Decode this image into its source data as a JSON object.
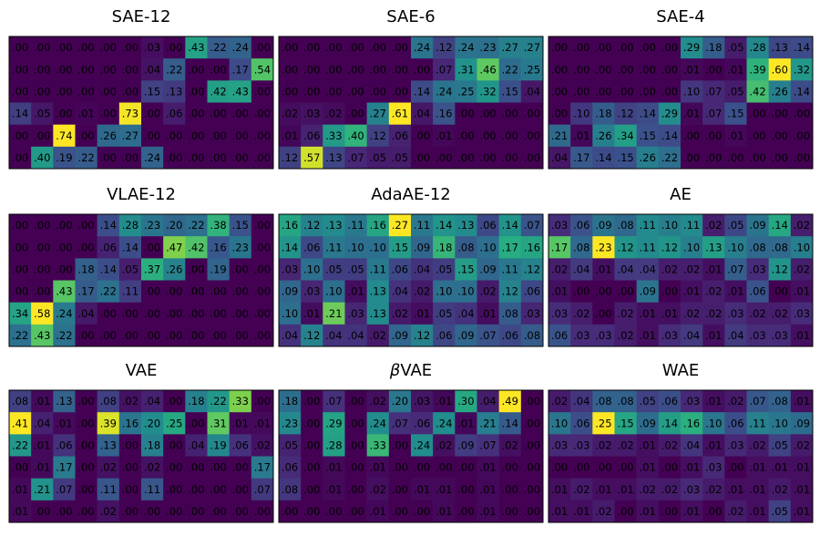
{
  "chart_data": [
    {
      "type": "heatmap",
      "title": "SAE-12",
      "rows": [
        [
          ".00",
          ".00",
          ".00",
          ".00",
          ".00",
          ".00",
          ".03",
          ".00",
          ".43",
          ".22",
          ".24",
          ".00"
        ],
        [
          ".00",
          ".00",
          ".00",
          ".00",
          ".00",
          ".00",
          ".04",
          ".22",
          ".00",
          ".00",
          ".17",
          ".54"
        ],
        [
          ".00",
          ".00",
          ".00",
          ".00",
          ".00",
          ".00",
          ".15",
          ".13",
          ".00",
          ".42",
          ".43",
          ".00"
        ],
        [
          ".14",
          ".05",
          ".00",
          ".01",
          ".00",
          ".73",
          ".00",
          ".06",
          ".00",
          ".00",
          ".00",
          ".00"
        ],
        [
          ".00",
          ".00",
          ".74",
          ".00",
          ".26",
          ".27",
          ".00",
          ".00",
          ".00",
          ".00",
          ".00",
          ".00"
        ],
        [
          ".00",
          ".40",
          ".19",
          ".22",
          ".00",
          ".00",
          ".24",
          ".00",
          ".00",
          ".00",
          ".00",
          ".00"
        ]
      ]
    },
    {
      "type": "heatmap",
      "title": "SAE-6",
      "rows": [
        [
          ".00",
          ".00",
          ".00",
          ".00",
          ".00",
          ".00",
          ".24",
          ".12",
          ".24",
          ".23",
          ".27",
          ".27"
        ],
        [
          ".00",
          ".00",
          ".00",
          ".00",
          ".00",
          ".00",
          ".00",
          ".07",
          ".31",
          ".46",
          ".22",
          ".25"
        ],
        [
          ".00",
          ".00",
          ".00",
          ".00",
          ".00",
          ".00",
          ".14",
          ".24",
          ".25",
          ".32",
          ".15",
          ".04"
        ],
        [
          ".02",
          ".03",
          ".02",
          ".00",
          ".27",
          ".61",
          ".04",
          ".16",
          ".00",
          ".00",
          ".00",
          ".00"
        ],
        [
          ".01",
          ".06",
          ".33",
          ".40",
          ".12",
          ".06",
          ".00",
          ".01",
          ".00",
          ".00",
          ".00",
          ".00"
        ],
        [
          ".12",
          ".57",
          ".13",
          ".07",
          ".05",
          ".05",
          ".00",
          ".00",
          ".00",
          ".00",
          ".00",
          ".00"
        ]
      ]
    },
    {
      "type": "heatmap",
      "title": "SAE-4",
      "rows": [
        [
          ".00",
          ".00",
          ".00",
          ".00",
          ".00",
          ".00",
          ".29",
          ".18",
          ".05",
          ".28",
          ".13",
          ".14"
        ],
        [
          ".00",
          ".00",
          ".00",
          ".00",
          ".00",
          ".00",
          ".01",
          ".00",
          ".01",
          ".39",
          ".60",
          ".32"
        ],
        [
          ".00",
          ".00",
          ".00",
          ".00",
          ".00",
          ".00",
          ".10",
          ".07",
          ".05",
          ".42",
          ".26",
          ".14"
        ],
        [
          ".00",
          ".10",
          ".18",
          ".12",
          ".14",
          ".29",
          ".01",
          ".07",
          ".15",
          ".00",
          ".00",
          ".00"
        ],
        [
          ".21",
          ".01",
          ".26",
          ".34",
          ".15",
          ".14",
          ".00",
          ".00",
          ".01",
          ".00",
          ".00",
          ".00"
        ],
        [
          ".04",
          ".17",
          ".14",
          ".15",
          ".26",
          ".22",
          ".00",
          ".00",
          ".00",
          ".00",
          ".00",
          ".00"
        ]
      ]
    },
    {
      "type": "heatmap",
      "title": "VLAE-12",
      "rows": [
        [
          ".00",
          ".00",
          ".00",
          ".00",
          ".14",
          ".28",
          ".23",
          ".20",
          ".22",
          ".38",
          ".15",
          ".00"
        ],
        [
          ".00",
          ".00",
          ".00",
          ".00",
          ".06",
          ".14",
          ".00",
          ".47",
          ".42",
          ".16",
          ".23",
          ".00"
        ],
        [
          ".00",
          ".00",
          ".00",
          ".18",
          ".14",
          ".05",
          ".37",
          ".26",
          ".00",
          ".19",
          ".00",
          ".00"
        ],
        [
          ".00",
          ".00",
          ".43",
          ".17",
          ".22",
          ".11",
          ".00",
          ".00",
          ".00",
          ".00",
          ".00",
          ".00"
        ],
        [
          ".34",
          ".58",
          ".24",
          ".04",
          ".00",
          ".00",
          ".00",
          ".00",
          ".00",
          ".00",
          ".00",
          ".00"
        ],
        [
          ".22",
          ".43",
          ".22",
          ".00",
          ".00",
          ".00",
          ".00",
          ".00",
          ".00",
          ".00",
          ".00",
          ".00"
        ]
      ]
    },
    {
      "type": "heatmap",
      "title": "AdaAE-12",
      "rows": [
        [
          ".16",
          ".12",
          ".13",
          ".11",
          ".16",
          ".27",
          ".11",
          ".14",
          ".13",
          ".06",
          ".14",
          ".07"
        ],
        [
          ".14",
          ".06",
          ".11",
          ".10",
          ".10",
          ".15",
          ".09",
          ".18",
          ".08",
          ".10",
          ".17",
          ".16"
        ],
        [
          ".03",
          ".10",
          ".05",
          ".05",
          ".11",
          ".06",
          ".04",
          ".05",
          ".15",
          ".09",
          ".11",
          ".12"
        ],
        [
          ".09",
          ".03",
          ".10",
          ".01",
          ".13",
          ".04",
          ".02",
          ".10",
          ".10",
          ".02",
          ".12",
          ".06"
        ],
        [
          ".10",
          ".01",
          ".21",
          ".03",
          ".13",
          ".02",
          ".01",
          ".05",
          ".04",
          ".01",
          ".08",
          ".03"
        ],
        [
          ".04",
          ".12",
          ".04",
          ".04",
          ".02",
          ".09",
          ".12",
          ".06",
          ".09",
          ".07",
          ".06",
          ".08"
        ]
      ]
    },
    {
      "type": "heatmap",
      "title": "AE",
      "rows": [
        [
          ".03",
          ".06",
          ".09",
          ".08",
          ".11",
          ".10",
          ".11",
          ".02",
          ".05",
          ".09",
          ".14",
          ".02"
        ],
        [
          ".17",
          ".08",
          ".23",
          ".12",
          ".11",
          ".12",
          ".10",
          ".13",
          ".10",
          ".08",
          ".08",
          ".10"
        ],
        [
          ".02",
          ".04",
          ".01",
          ".04",
          ".04",
          ".02",
          ".02",
          ".01",
          ".07",
          ".03",
          ".12",
          ".02"
        ],
        [
          ".01",
          ".00",
          ".00",
          ".00",
          ".09",
          ".00",
          ".01",
          ".02",
          ".01",
          ".06",
          ".00",
          ".01"
        ],
        [
          ".03",
          ".02",
          ".00",
          ".02",
          ".01",
          ".01",
          ".02",
          ".02",
          ".03",
          ".02",
          ".02",
          ".03"
        ],
        [
          ".06",
          ".03",
          ".03",
          ".02",
          ".01",
          ".03",
          ".04",
          ".01",
          ".04",
          ".03",
          ".03",
          ".01"
        ]
      ]
    },
    {
      "type": "heatmap",
      "title": "VAE",
      "rows": [
        [
          ".08",
          ".01",
          ".13",
          ".00",
          ".08",
          ".02",
          ".04",
          ".00",
          ".18",
          ".22",
          ".33",
          ".00"
        ],
        [
          ".41",
          ".04",
          ".01",
          ".00",
          ".39",
          ".16",
          ".20",
          ".25",
          ".00",
          ".31",
          ".01",
          ".01"
        ],
        [
          ".22",
          ".01",
          ".06",
          ".00",
          ".13",
          ".00",
          ".18",
          ".00",
          ".04",
          ".19",
          ".06",
          ".02"
        ],
        [
          ".00",
          ".01",
          ".17",
          ".00",
          ".02",
          ".00",
          ".02",
          ".00",
          ".00",
          ".00",
          ".00",
          ".17"
        ],
        [
          ".01",
          ".21",
          ".07",
          ".00",
          ".11",
          ".00",
          ".11",
          ".00",
          ".00",
          ".00",
          ".00",
          ".07"
        ],
        [
          ".01",
          ".00",
          ".00",
          ".00",
          ".02",
          ".00",
          ".00",
          ".00",
          ".00",
          ".00",
          ".00",
          ".00"
        ]
      ]
    },
    {
      "type": "heatmap",
      "title": "βVAE",
      "title_style": "italic-beta",
      "rows": [
        [
          ".18",
          ".00",
          ".07",
          ".00",
          ".02",
          ".20",
          ".03",
          ".01",
          ".30",
          ".04",
          ".49",
          ".00"
        ],
        [
          ".23",
          ".00",
          ".29",
          ".00",
          ".24",
          ".07",
          ".06",
          ".24",
          ".01",
          ".21",
          ".14",
          ".00"
        ],
        [
          ".05",
          ".00",
          ".28",
          ".00",
          ".33",
          ".00",
          ".24",
          ".02",
          ".09",
          ".07",
          ".02",
          ".00"
        ],
        [
          ".06",
          ".00",
          ".01",
          ".00",
          ".01",
          ".00",
          ".00",
          ".00",
          ".00",
          ".01",
          ".00",
          ".00"
        ],
        [
          ".08",
          ".00",
          ".01",
          ".00",
          ".02",
          ".00",
          ".01",
          ".01",
          ".00",
          ".01",
          ".00",
          ".00"
        ],
        [
          ".00",
          ".00",
          ".00",
          ".00",
          ".01",
          ".00",
          ".00",
          ".01",
          ".00",
          ".01",
          ".00",
          ".00"
        ]
      ]
    },
    {
      "type": "heatmap",
      "title": "WAE",
      "rows": [
        [
          ".02",
          ".04",
          ".08",
          ".08",
          ".05",
          ".06",
          ".03",
          ".01",
          ".02",
          ".07",
          ".08",
          ".01"
        ],
        [
          ".10",
          ".06",
          ".25",
          ".15",
          ".09",
          ".14",
          ".16",
          ".10",
          ".06",
          ".11",
          ".10",
          ".09"
        ],
        [
          ".03",
          ".03",
          ".02",
          ".02",
          ".01",
          ".02",
          ".04",
          ".01",
          ".03",
          ".02",
          ".05",
          ".02"
        ],
        [
          ".00",
          ".00",
          ".00",
          ".00",
          ".01",
          ".00",
          ".01",
          ".03",
          ".00",
          ".01",
          ".01",
          ".01"
        ],
        [
          ".01",
          ".02",
          ".01",
          ".01",
          ".02",
          ".02",
          ".03",
          ".02",
          ".01",
          ".01",
          ".02",
          ".01"
        ],
        [
          ".01",
          ".01",
          ".02",
          ".00",
          ".01",
          ".00",
          ".01",
          ".00",
          ".02",
          ".01",
          ".05",
          ".01"
        ]
      ]
    }
  ]
}
